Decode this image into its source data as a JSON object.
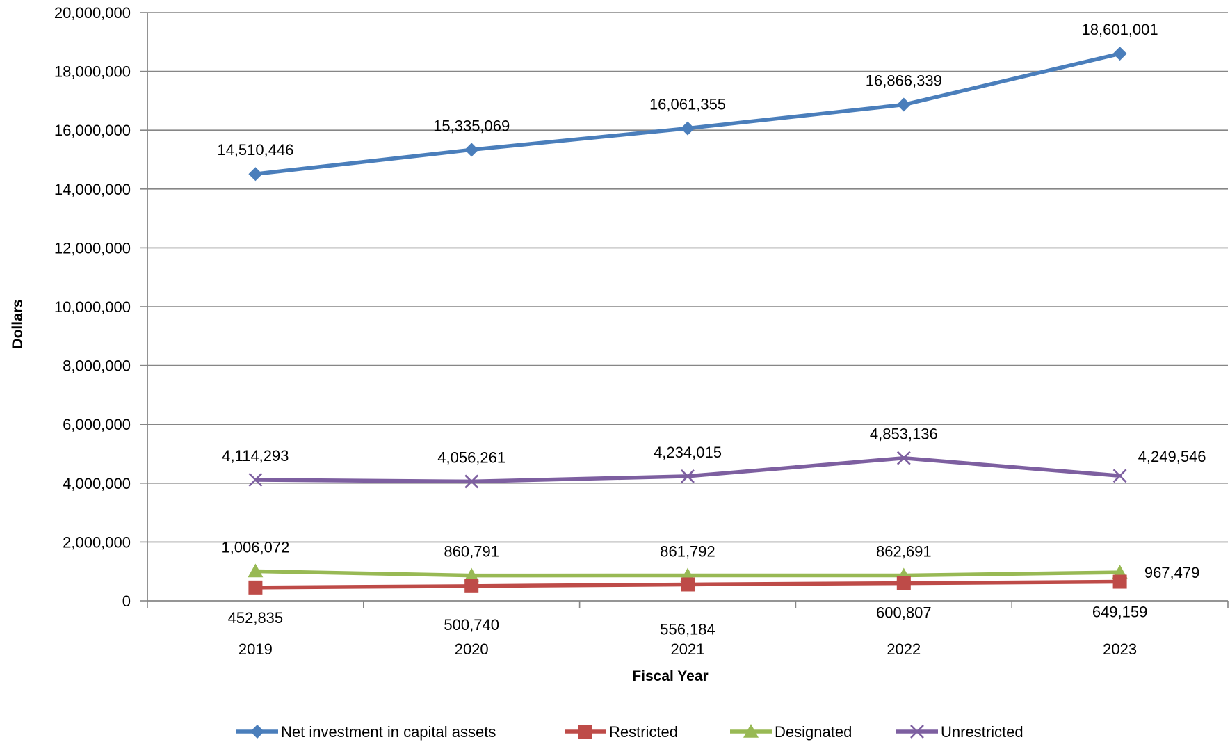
{
  "chart_data": {
    "type": "line",
    "title": "",
    "xlabel": "Fiscal Year",
    "ylabel": "Dollars",
    "categories": [
      "2019",
      "2020",
      "2021",
      "2022",
      "2023"
    ],
    "ylim": [
      0,
      20000000
    ],
    "yticks": [
      0,
      2000000,
      4000000,
      6000000,
      8000000,
      10000000,
      12000000,
      14000000,
      16000000,
      18000000,
      20000000
    ],
    "ytick_labels": [
      "0",
      "2,000,000",
      "4,000,000",
      "6,000,000",
      "8,000,000",
      "10,000,000",
      "12,000,000",
      "14,000,000",
      "16,000,000",
      "18,000,000",
      "20,000,000"
    ],
    "grid": true,
    "legend_position": "bottom",
    "series": [
      {
        "name": "Net investment in capital assets",
        "color": "#4a7ebb",
        "marker": "diamond",
        "values": [
          14510446,
          15335069,
          16061355,
          16866339,
          18601001
        ],
        "labels": [
          "14,510,446",
          "15,335,069",
          "16,061,355",
          "16,866,339",
          "18,601,001"
        ]
      },
      {
        "name": "Restricted",
        "color": "#be4b48",
        "marker": "square",
        "values": [
          452835,
          500740,
          556184,
          600807,
          649159
        ],
        "labels": [
          "452,835",
          "500,740",
          "556,184",
          "600,807",
          "649,159"
        ]
      },
      {
        "name": "Designated",
        "color": "#98b954",
        "marker": "triangle",
        "values": [
          1006072,
          860791,
          861792,
          862691,
          967479
        ],
        "labels": [
          "1,006,072",
          "860,791",
          "861,792",
          "862,691",
          "967,479"
        ]
      },
      {
        "name": "Unrestricted",
        "color": "#7d5fa0",
        "marker": "x",
        "values": [
          4114293,
          4056261,
          4234015,
          4853136,
          4249546
        ],
        "labels": [
          "4,114,293",
          "4,056,261",
          "4,234,015",
          "4,853,136",
          "4,249,546"
        ]
      }
    ]
  }
}
